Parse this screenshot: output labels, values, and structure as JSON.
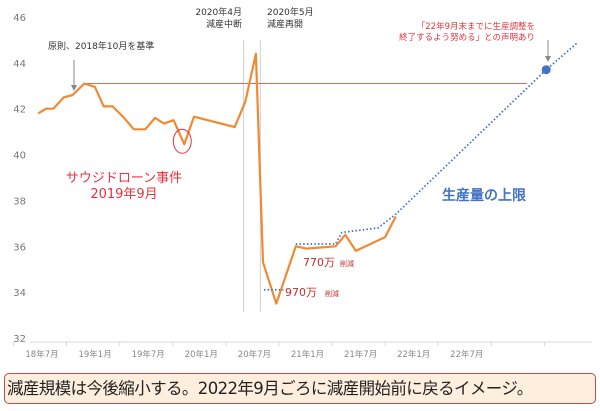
{
  "chart_data": {
    "type": "line",
    "x_unit": "months since 2018年7月",
    "ylim": [
      32,
      46
    ],
    "yticks": [
      32,
      34,
      36,
      38,
      40,
      42,
      44,
      46
    ],
    "xticks": [
      {
        "m": 0,
        "label": "18年7月"
      },
      {
        "m": 6,
        "label": "19年1月"
      },
      {
        "m": 12,
        "label": "19年7月"
      },
      {
        "m": 18,
        "label": "20年1月"
      },
      {
        "m": 24,
        "label": "20年7月"
      },
      {
        "m": 30,
        "label": "21年1月"
      },
      {
        "m": 36,
        "label": "21年7月"
      },
      {
        "m": 42,
        "label": "22年1月"
      },
      {
        "m": 48,
        "label": "22年7月"
      }
    ],
    "xlim": [
      -1,
      62
    ],
    "series": [
      {
        "name": "生産量",
        "color": "#f08a32",
        "style": "solid",
        "points": [
          [
            -0.2,
            41.8
          ],
          [
            0.7,
            42.0
          ],
          [
            1.5,
            42.0
          ],
          [
            2.7,
            42.5
          ],
          [
            3.7,
            42.6
          ],
          [
            5.0,
            43.1
          ],
          [
            6.2,
            42.95
          ],
          [
            7.2,
            42.1
          ],
          [
            8.2,
            42.1
          ],
          [
            9.5,
            41.6
          ],
          [
            10.6,
            41.1
          ],
          [
            11.9,
            41.1
          ],
          [
            13.0,
            41.6
          ],
          [
            14.0,
            41.35
          ],
          [
            15.1,
            41.5
          ],
          [
            16.3,
            40.45
          ],
          [
            17.4,
            41.65
          ],
          [
            22.0,
            41.2
          ],
          [
            23.2,
            42.3
          ],
          [
            24.4,
            44.4
          ],
          [
            25.2,
            35.3
          ],
          [
            26.7,
            33.5
          ],
          [
            28.9,
            36.0
          ],
          [
            30.1,
            35.9
          ],
          [
            33.4,
            36.0
          ],
          [
            34.5,
            36.5
          ],
          [
            35.7,
            35.8
          ],
          [
            39.0,
            36.4
          ],
          [
            40.2,
            37.3
          ]
        ]
      },
      {
        "name": "生産量の上限",
        "color": "#4472c4",
        "style": "dotted",
        "points": [
          [
            28.9,
            36.1
          ],
          [
            33.4,
            36.1
          ],
          [
            34.1,
            36.6
          ],
          [
            38.2,
            36.8
          ],
          [
            40.2,
            37.4
          ],
          [
            57.2,
            43.7
          ],
          [
            60.8,
            44.9
          ]
        ]
      },
      {
        "name": "970万削減",
        "color": "#4472c4",
        "style": "dotted",
        "points": [
          [
            25.3,
            34.1
          ],
          [
            27.5,
            34.1
          ]
        ]
      }
    ],
    "baseline": {
      "value": 43.1,
      "from": 5.0,
      "to": 55.0,
      "color": "#e06a5a"
    },
    "vlines": [
      23.0,
      24.9
    ],
    "marker": {
      "x": 57.2,
      "y": 43.7,
      "color": "#4472c4"
    },
    "highlight_circle": {
      "x": 16.3,
      "y": 40.45
    },
    "annotations": {
      "baseline_note": "原則、2018年10月を基準",
      "pause_line1": "2020年4月",
      "pause_line2": "減産中断",
      "resume_line1": "2020年5月",
      "resume_line2": "減産再開",
      "statement_line1": "「22年9月末までに生産調整を",
      "statement_line2": "終了するよう努める」との声明あり",
      "incident_line1": "サウジドローン事件",
      "incident_line2": "2019年9月",
      "upper_limit_label": "生産量の上限",
      "cut770_value": "770万",
      "cut770_unit": "削減",
      "cut970_value": "970万",
      "cut970_unit": "削減"
    }
  },
  "footer": {
    "text": "減産規模は今後縮小する。2022年9月ごろに減産開始前に戻るイメージ。"
  }
}
